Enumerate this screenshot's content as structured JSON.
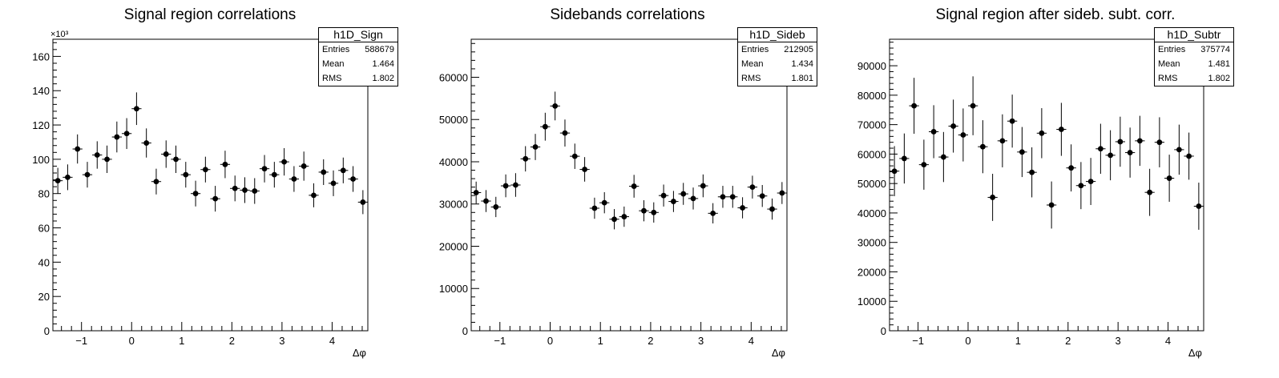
{
  "chart_data": [
    {
      "type": "scatter",
      "title": "Signal region correlations",
      "xlabel": "Δφ",
      "ylabel": "",
      "exponent_label": "×10³",
      "xlim": [
        -1.5708,
        4.7124
      ],
      "ylim": [
        0,
        170000
      ],
      "yticks": [
        0,
        20000,
        40000,
        60000,
        80000,
        100000,
        120000,
        140000,
        160000
      ],
      "ytick_labels": [
        "0",
        "20",
        "40",
        "60",
        "80",
        "100",
        "120",
        "140",
        "160"
      ],
      "xticks": [
        -1,
        0,
        1,
        2,
        3,
        4
      ],
      "xtick_labels": [
        "−1",
        "0",
        "1",
        "2",
        "3",
        "4"
      ],
      "x": [
        -1.4726,
        -1.2763,
        -1.0799,
        -0.8836,
        -0.6872,
        -0.4909,
        -0.2945,
        -0.0982,
        0.0982,
        0.2945,
        0.4909,
        0.6872,
        0.8836,
        1.0799,
        1.2763,
        1.4726,
        1.669,
        1.8653,
        2.0617,
        2.258,
        2.4544,
        2.6507,
        2.8471,
        3.0434,
        3.2398,
        3.4361,
        3.6325,
        3.8288,
        4.0252,
        4.2215,
        4.4179,
        4.6142
      ],
      "y": [
        87500,
        89500,
        106000,
        91000,
        102500,
        100000,
        113000,
        115000,
        129500,
        109500,
        87000,
        103000,
        100000,
        91000,
        80000,
        94000,
        77000,
        97000,
        83000,
        82000,
        81500,
        94500,
        91000,
        98500,
        88500,
        96000,
        79000,
        92500,
        86000,
        93500,
        88500,
        75000
      ],
      "yerr": [
        7500,
        7500,
        8500,
        7500,
        8000,
        8000,
        9000,
        9000,
        9500,
        8500,
        7500,
        8000,
        8000,
        7500,
        7500,
        7500,
        7500,
        8000,
        7500,
        7500,
        7500,
        8000,
        7500,
        8000,
        7500,
        8500,
        7000,
        7500,
        7500,
        7500,
        7500,
        7000
      ],
      "stats": {
        "name": "h1D_Sign",
        "entries": "588679",
        "mean": "1.464",
        "rms": "1.802"
      }
    },
    {
      "type": "scatter",
      "title": "Sidebands correlations",
      "xlabel": "Δφ",
      "ylabel": "",
      "exponent_label": "",
      "xlim": [
        -1.5708,
        4.7124
      ],
      "ylim": [
        0,
        69000
      ],
      "yticks": [
        0,
        10000,
        20000,
        30000,
        40000,
        50000,
        60000
      ],
      "ytick_labels": [
        "0",
        "10000",
        "20000",
        "30000",
        "40000",
        "50000",
        "60000"
      ],
      "xticks": [
        -1,
        0,
        1,
        2,
        3,
        4
      ],
      "xtick_labels": [
        "−1",
        "0",
        "1",
        "2",
        "3",
        "4"
      ],
      "x": [
        -1.4726,
        -1.2763,
        -1.0799,
        -0.8836,
        -0.6872,
        -0.4909,
        -0.2945,
        -0.0982,
        0.0982,
        0.2945,
        0.4909,
        0.6872,
        0.8836,
        1.0799,
        1.2763,
        1.4726,
        1.669,
        1.8653,
        2.0617,
        2.258,
        2.4544,
        2.6507,
        2.8471,
        3.0434,
        3.2398,
        3.4361,
        3.6325,
        3.8288,
        4.0252,
        4.2215,
        4.4179,
        4.6142
      ],
      "y": [
        32700,
        30700,
        29300,
        34300,
        34500,
        40700,
        43500,
        48300,
        53200,
        46800,
        41300,
        38200,
        29000,
        30300,
        26400,
        27000,
        34200,
        28400,
        28000,
        32000,
        30600,
        32400,
        31300,
        34300,
        27800,
        31700,
        31700,
        29100,
        34000,
        31900,
        28800,
        32600
      ],
      "yerr": [
        2600,
        2600,
        2400,
        2700,
        2800,
        3000,
        3100,
        3300,
        3400,
        3200,
        3000,
        2900,
        2500,
        2500,
        2400,
        2400,
        2700,
        2500,
        2400,
        2600,
        2500,
        2600,
        2600,
        2700,
        2400,
        2600,
        2600,
        2500,
        2700,
        2600,
        2500,
        2600
      ],
      "stats": {
        "name": "h1D_Sideb",
        "entries": "212905",
        "mean": "1.434",
        "rms": "1.801"
      }
    },
    {
      "type": "scatter",
      "title": "Signal region after sideb. subt. corr.",
      "xlabel": "Δφ",
      "ylabel": "",
      "exponent_label": "",
      "xlim": [
        -1.5708,
        4.7124
      ],
      "ylim": [
        0,
        99000
      ],
      "yticks": [
        0,
        10000,
        20000,
        30000,
        40000,
        50000,
        60000,
        70000,
        80000,
        90000
      ],
      "ytick_labels": [
        "0",
        "10000",
        "20000",
        "30000",
        "40000",
        "50000",
        "60000",
        "70000",
        "80000",
        "90000"
      ],
      "xticks": [
        -1,
        0,
        1,
        2,
        3,
        4
      ],
      "xtick_labels": [
        "−1",
        "0",
        "1",
        "2",
        "3",
        "4"
      ],
      "x": [
        -1.4726,
        -1.2763,
        -1.0799,
        -0.8836,
        -0.6872,
        -0.4909,
        -0.2945,
        -0.0982,
        0.0982,
        0.2945,
        0.4909,
        0.6872,
        0.8836,
        1.0799,
        1.2763,
        1.4726,
        1.669,
        1.8653,
        2.0617,
        2.258,
        2.4544,
        2.6507,
        2.8471,
        3.0434,
        3.2398,
        3.4361,
        3.6325,
        3.8288,
        4.0252,
        4.2215,
        4.4179,
        4.6142
      ],
      "y": [
        54200,
        58500,
        76400,
        56400,
        67600,
        59000,
        69500,
        66500,
        76400,
        62500,
        45300,
        64500,
        71200,
        60700,
        53800,
        67100,
        42700,
        68400,
        55300,
        49300,
        50700,
        61800,
        59600,
        64200,
        60500,
        64500,
        47000,
        64000,
        51800,
        61500,
        59300,
        42300
      ],
      "yerr": [
        8500,
        8500,
        9500,
        8500,
        9000,
        8500,
        9000,
        9000,
        10000,
        9000,
        8000,
        9000,
        9000,
        8500,
        8500,
        8500,
        8000,
        9000,
        8000,
        8000,
        8000,
        8500,
        8500,
        8500,
        8500,
        8500,
        8000,
        8500,
        8000,
        8500,
        8000,
        8000
      ],
      "stats": {
        "name": "h1D_Subtr",
        "entries": "375774",
        "mean": "1.481",
        "rms": "1.802"
      }
    }
  ],
  "stat_labels": {
    "entries": "Entries",
    "mean": "Mean",
    "rms": "RMS"
  }
}
